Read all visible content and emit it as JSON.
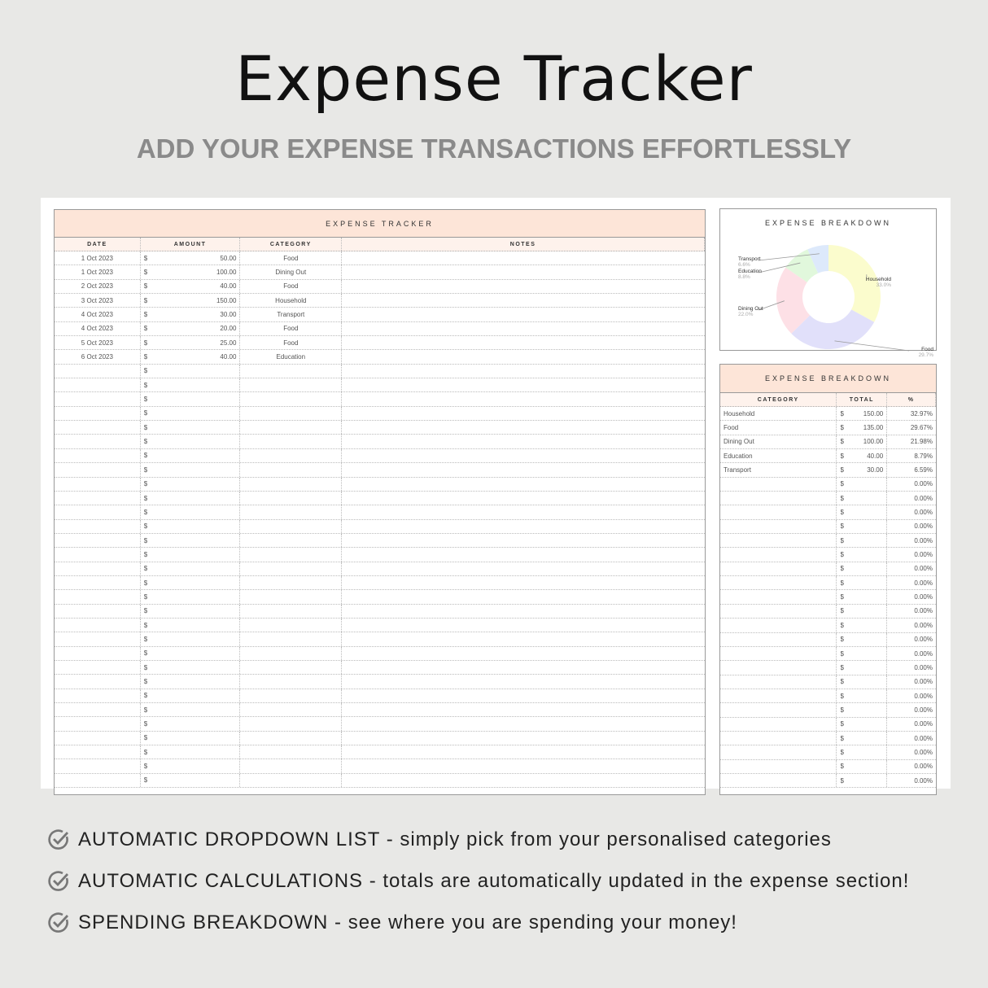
{
  "title": "Expense Tracker",
  "subtitle": "ADD YOUR EXPENSE TRANSACTIONS EFFORTLESSLY",
  "tracker": {
    "heading": "EXPENSE TRACKER",
    "columns": [
      "DATE",
      "AMOUNT",
      "CATEGORY",
      "NOTES"
    ],
    "currency": "$",
    "rows": [
      {
        "date": "1 Oct 2023",
        "amount": "50.00",
        "category": "Food"
      },
      {
        "date": "1 Oct 2023",
        "amount": "100.00",
        "category": "Dining Out"
      },
      {
        "date": "2 Oct 2023",
        "amount": "40.00",
        "category": "Food"
      },
      {
        "date": "3 Oct 2023",
        "amount": "150.00",
        "category": "Household"
      },
      {
        "date": "4 Oct 2023",
        "amount": "30.00",
        "category": "Transport"
      },
      {
        "date": "4 Oct 2023",
        "amount": "20.00",
        "category": "Food"
      },
      {
        "date": "5 Oct 2023",
        "amount": "25.00",
        "category": "Food"
      },
      {
        "date": "6 Oct 2023",
        "amount": "40.00",
        "category": "Education"
      }
    ],
    "empty_rows": 30
  },
  "chart_data": {
    "type": "pie",
    "title": "EXPENSE BREAKDOWN",
    "donut": true,
    "categories": [
      "Household",
      "Food",
      "Dining Out",
      "Education",
      "Transport"
    ],
    "values": [
      33.0,
      29.7,
      22.0,
      8.8,
      6.6
    ],
    "labels": [
      "33.0%",
      "29.7%",
      "22.0%",
      "8.8%",
      "6.6%"
    ],
    "colors": [
      "#fbfccd",
      "#e1e0fa",
      "#fde0e6",
      "#e1f8dc",
      "#dde9fb"
    ]
  },
  "breakdown": {
    "heading": "EXPENSE BREAKDOWN",
    "columns": [
      "CATEGORY",
      "TOTAL",
      "%"
    ],
    "currency": "$",
    "rows": [
      {
        "category": "Household",
        "total": "150.00",
        "pct": "32.97%"
      },
      {
        "category": "Food",
        "total": "135.00",
        "pct": "29.67%"
      },
      {
        "category": "Dining Out",
        "total": "100.00",
        "pct": "21.98%"
      },
      {
        "category": "Education",
        "total": "40.00",
        "pct": "8.79%"
      },
      {
        "category": "Transport",
        "total": "30.00",
        "pct": "6.59%"
      }
    ],
    "empty_pct": "0.00%",
    "empty_rows": 22
  },
  "features": [
    {
      "text": "AUTOMATIC DROPDOWN LIST - simply pick from your personalised categories",
      "icon": "check-circle-icon"
    },
    {
      "text": "AUTOMATIC CALCULATIONS - totals are automatically updated in the expense section!",
      "icon": "check-circle-icon"
    },
    {
      "text": "SPENDING BREAKDOWN - see where you are spending your money!",
      "icon": "check-circle-icon"
    }
  ]
}
